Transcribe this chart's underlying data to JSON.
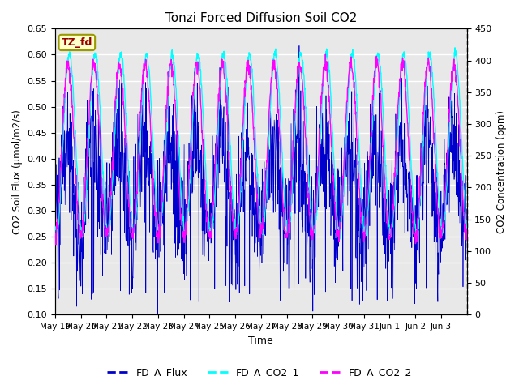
{
  "title": "Tonzi Forced Diffusion Soil CO2",
  "xlabel": "Time",
  "ylabel_left": "CO2 Soil Flux (μmol/m2/s)",
  "ylabel_right": "CO2 Concentration (ppm)",
  "ylim_left": [
    0.1,
    0.65
  ],
  "ylim_right": [
    0,
    450
  ],
  "yticks_left": [
    0.1,
    0.15,
    0.2,
    0.25,
    0.3,
    0.35,
    0.4,
    0.45,
    0.5,
    0.55,
    0.6,
    0.65
  ],
  "yticks_right": [
    0,
    50,
    100,
    150,
    200,
    250,
    300,
    350,
    400,
    450
  ],
  "xtick_labels": [
    "May 19",
    "May 20",
    "May 21",
    "May 22",
    "May 23",
    "May 24",
    "May 25",
    "May 26",
    "May 27",
    "May 28",
    "May 29",
    "May 30",
    "May 31",
    "Jun 1",
    "Jun 2",
    "Jun 3"
  ],
  "color_flux": "#0000CC",
  "color_co2_1": "#00FFFF",
  "color_co2_2": "#FF00FF",
  "legend_label_1": "FD_A_Flux",
  "legend_label_2": "FD_A_CO2_1",
  "legend_label_3": "FD_A_CO2_2",
  "tag_text": "TZ_fd",
  "tag_bg": "#FFFFCC",
  "tag_border": "#999900",
  "tag_text_color": "#990000",
  "bg_color": "#E8E8E8",
  "grid_color": "#FFFFFF",
  "n_days": 16,
  "seed": 42
}
